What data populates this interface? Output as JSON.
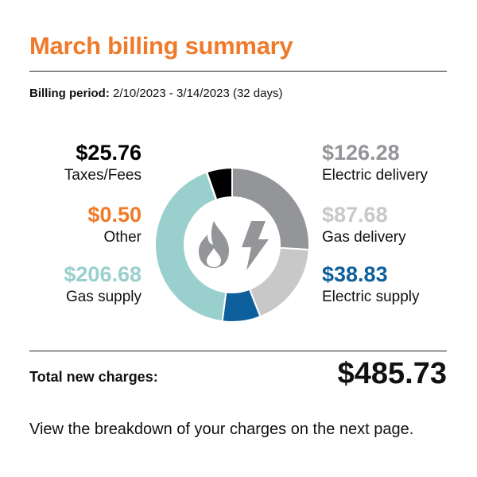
{
  "title": "March billing summary",
  "billing_period": {
    "label": "Billing period:",
    "value": "2/10/2023 - 3/14/2023 (32 days)"
  },
  "total": {
    "label": "Total new charges:",
    "value": "$485.73"
  },
  "footer": "View the breakdown of your charges on the next page.",
  "center_icons": [
    "flame-icon",
    "lightning-bolt-icon"
  ],
  "chart_data": {
    "type": "pie",
    "donut": true,
    "slices": [
      {
        "name": "Electric delivery",
        "amount": "$126.28",
        "value": 126.28,
        "color": "#939598"
      },
      {
        "name": "Gas delivery",
        "amount": "$87.68",
        "value": 87.68,
        "color": "#c8c8c8"
      },
      {
        "name": "Electric supply",
        "amount": "$38.83",
        "value": 38.83,
        "color": "#0e609c"
      },
      {
        "name": "Gas supply",
        "amount": "$206.68",
        "value": 206.68,
        "color": "#99cfcd"
      },
      {
        "name": "Other",
        "amount": "$0.50",
        "value": 0.5,
        "color": "#ef7a2a"
      },
      {
        "name": "Taxes/Fees",
        "amount": "$25.76",
        "value": 25.76,
        "color": "#000000"
      }
    ]
  }
}
